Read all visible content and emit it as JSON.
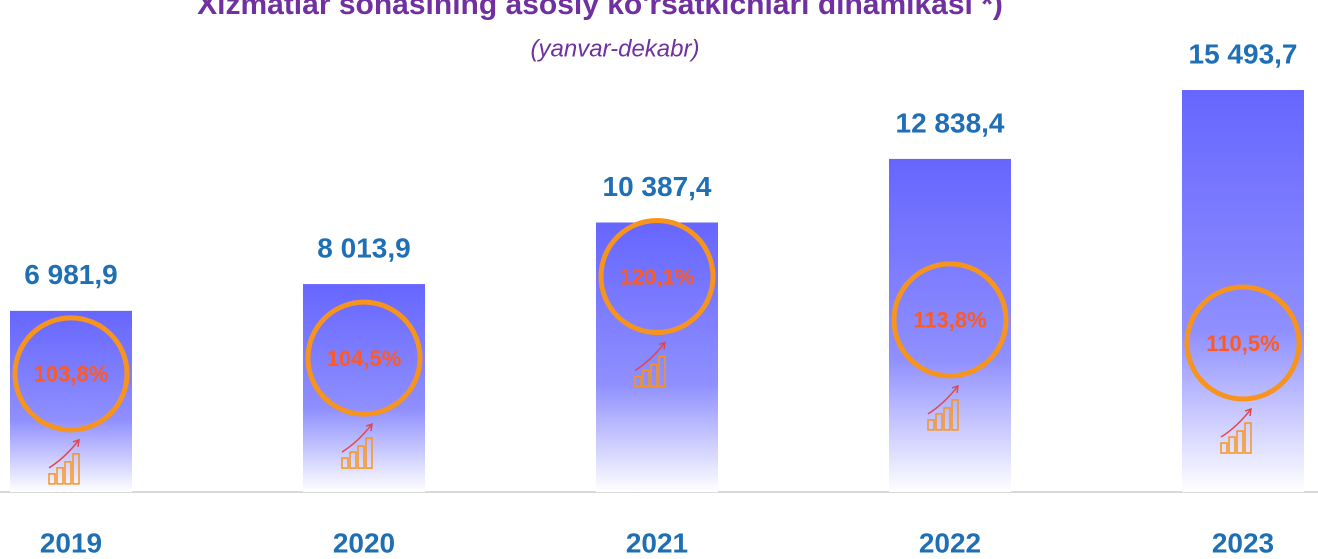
{
  "chart_data": {
    "type": "bar",
    "title": "Xizmatlar sohasining asosiy ko'rsatkichlari dinamikasi *)",
    "subtitle": "(yanvar-dekabr)",
    "categories": [
      "2019",
      "2020",
      "2021",
      "2022",
      "2023"
    ],
    "values": [
      6981.9,
      8013.9,
      10387.4,
      12838.4,
      15493.7
    ],
    "value_labels": [
      "6 981,9",
      "8 013,9",
      "10 387,4",
      "12 838,4",
      "15 493,7"
    ],
    "growth_values": [
      103.8,
      104.5,
      120.1,
      113.8,
      110.5
    ],
    "growth_labels": [
      "103,8%",
      "104,5%",
      "120,1%",
      "113,8%",
      "110,5%"
    ],
    "color": "#6666ff",
    "ylim": [
      0,
      18000
    ]
  }
}
